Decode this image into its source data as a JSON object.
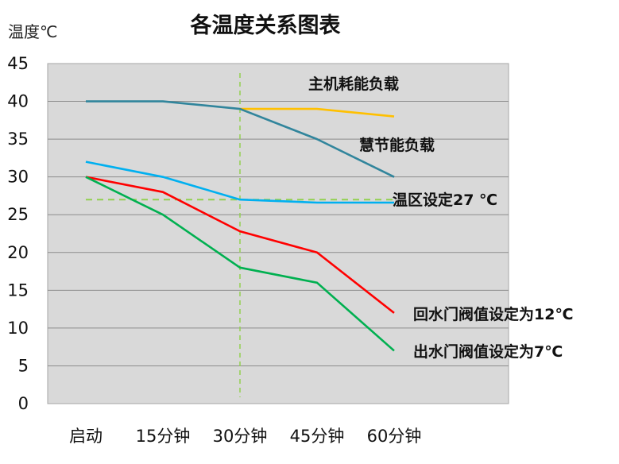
{
  "chart_data": {
    "type": "line",
    "title": "各温度关系图表",
    "ylabel": "温度℃",
    "xlabel": "",
    "categories": [
      "启动",
      "15分钟",
      "30分钟",
      "45分钟",
      "60分钟"
    ],
    "ylim": [
      0,
      45
    ],
    "yticks": [
      0,
      5,
      10,
      15,
      20,
      25,
      30,
      35,
      40,
      45
    ],
    "grid": true,
    "series": [
      {
        "name": "主机耗能负载",
        "color": "#FFC000",
        "values": [
          null,
          null,
          39,
          39,
          38
        ]
      },
      {
        "name": "慧节能负载",
        "color": "#31859C",
        "values": [
          40,
          40,
          39,
          35,
          30
        ]
      },
      {
        "name": "",
        "color": "#00B0F0",
        "values": [
          32,
          30,
          27,
          26.6,
          26.6
        ]
      },
      {
        "name": "回水门阀值设定为12℃",
        "color": "#FF0000",
        "values": [
          30,
          28,
          22.8,
          20,
          12
        ]
      },
      {
        "name": "出水门阀值设定为7℃",
        "color": "#00B050",
        "values": [
          30,
          25,
          18,
          16,
          7
        ]
      }
    ],
    "reference_lines": [
      {
        "type": "horizontal",
        "value": 27,
        "label": "温区设定27 ℃",
        "color": "#92D050"
      },
      {
        "type": "vertical",
        "category": "30分钟",
        "color": "#92D050"
      }
    ]
  }
}
